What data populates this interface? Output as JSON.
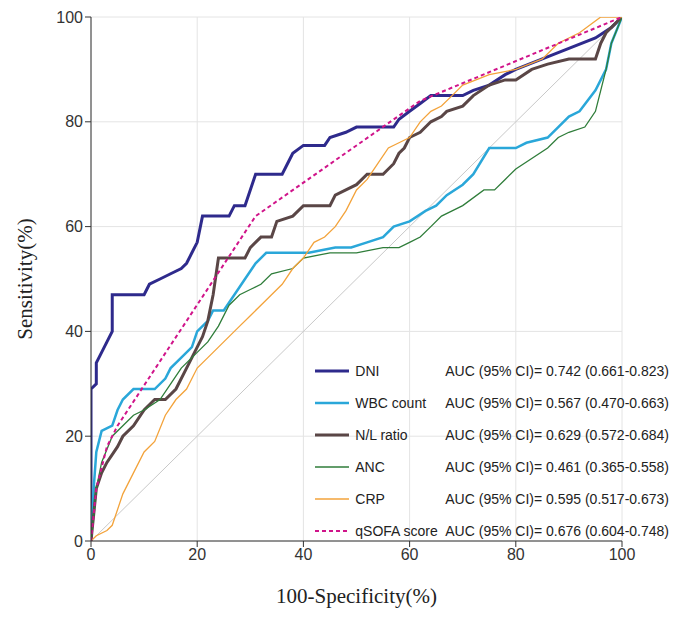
{
  "chart_data": {
    "type": "line",
    "x_label": "100-Specificity(%)",
    "y_label": "Sensitivity(%)",
    "xlim": [
      0,
      100
    ],
    "ylim": [
      0,
      100
    ],
    "xticks": [
      0,
      20,
      40,
      60,
      80,
      100
    ],
    "yticks": [
      0,
      20,
      40,
      60,
      80,
      100
    ],
    "grid": true,
    "legend": "lower right",
    "series": [
      {
        "name": "DNI",
        "annotation": "AUC (95% CI)= 0.742 (0.661-0.823)",
        "color": "#2e2a8c",
        "line_style": "solid",
        "x": [
          0,
          0,
          1,
          1,
          2,
          3,
          4,
          4,
          10,
          11,
          13,
          15,
          17,
          18,
          19,
          20,
          21,
          26,
          27,
          29,
          30,
          31,
          36,
          37,
          38,
          40,
          44,
          45,
          48,
          50,
          57,
          58,
          60,
          62,
          64,
          70,
          72,
          75,
          78,
          80,
          85,
          90,
          95,
          98,
          100
        ],
        "values": [
          0,
          29,
          30,
          34,
          36,
          38,
          40,
          47,
          47,
          49,
          50,
          51,
          52,
          53,
          55,
          57,
          62,
          62,
          64,
          64,
          67,
          70,
          70,
          72,
          74,
          75.5,
          75.5,
          77,
          78,
          79,
          79,
          80.5,
          82,
          83.5,
          85,
          85,
          86,
          87,
          89,
          90,
          92,
          94,
          96,
          98,
          100
        ]
      },
      {
        "name": "WBC count",
        "annotation": "AUC (95% CI)= 0.567 (0.470-0.663)",
        "color": "#2aa7d9",
        "line_style": "solid",
        "x": [
          0,
          0.5,
          1,
          2,
          4,
          5,
          6,
          8,
          12,
          14,
          15,
          17,
          19,
          20,
          22,
          23,
          25,
          27,
          29,
          31,
          33,
          41,
          46,
          49,
          52,
          55,
          57,
          60,
          63,
          65,
          67,
          70,
          72,
          75,
          80,
          82,
          86,
          88,
          90,
          92,
          95,
          97,
          98,
          100
        ],
        "values": [
          0,
          10,
          17,
          21,
          22,
          25,
          27,
          29,
          29,
          31,
          33,
          35,
          37,
          40,
          42,
          44,
          44,
          47,
          50,
          53,
          55,
          55,
          56,
          56,
          57,
          58,
          60,
          61,
          63,
          64,
          66,
          68,
          70,
          75,
          75,
          76,
          77,
          79,
          81,
          82,
          86,
          90,
          95,
          100
        ]
      },
      {
        "name": "N/L ratio",
        "annotation": "AUC (95% CI)= 0.629 (0.572-0.684)",
        "color": "#5a4646",
        "line_style": "solid",
        "x": [
          0,
          1,
          2,
          3,
          5,
          6,
          8,
          10,
          12,
          14,
          16,
          18,
          19,
          20,
          21,
          22,
          23,
          24,
          29,
          30,
          32,
          34,
          35,
          38,
          40,
          45,
          46,
          48,
          50,
          52,
          55,
          57,
          58,
          59,
          60,
          62,
          64,
          66,
          67,
          70,
          72,
          75,
          78,
          80,
          83,
          86,
          90,
          95,
          96,
          97,
          100
        ],
        "values": [
          0,
          10,
          13,
          15,
          18,
          20,
          22,
          25,
          27,
          27,
          29,
          33,
          35,
          37,
          39,
          42,
          47,
          54,
          54,
          56,
          58,
          58,
          61,
          62,
          64,
          64,
          66,
          67,
          68,
          70,
          70,
          72,
          74,
          75,
          77,
          78,
          80,
          81,
          82,
          83,
          85,
          87,
          88,
          88,
          90,
          91,
          92,
          92,
          95,
          97,
          100
        ]
      },
      {
        "name": "ANC",
        "annotation": "AUC (95% CI)= 0.461 (0.365-0.558)",
        "color": "#2f7d3a",
        "line_style": "solid",
        "x": [
          0,
          1,
          2,
          4,
          6,
          8,
          10,
          13,
          15,
          17,
          20,
          22,
          24,
          26,
          28,
          30,
          32,
          34,
          38,
          40,
          45,
          50,
          55,
          58,
          60,
          62,
          64,
          66,
          68,
          70,
          74,
          76,
          78,
          80,
          83,
          86,
          88,
          90,
          93,
          95,
          96,
          97,
          98,
          100
        ],
        "values": [
          0,
          10,
          15,
          20,
          22,
          24,
          25,
          27,
          30,
          33,
          36,
          38,
          41,
          45,
          47,
          48,
          49,
          51,
          52,
          54,
          55,
          55,
          56,
          56,
          57,
          58,
          60,
          62,
          63,
          64,
          67,
          67,
          69,
          71,
          73,
          75,
          77,
          78,
          79,
          82,
          86,
          90,
          95,
          100
        ]
      },
      {
        "name": "CRP",
        "annotation": "AUC (95% CI)= 0.595 (0.517-0.673)",
        "color": "#f3a33b",
        "line_style": "solid",
        "x": [
          0,
          1,
          3,
          4,
          6,
          8,
          10,
          12,
          14,
          16,
          18,
          20,
          22,
          24,
          26,
          28,
          30,
          32,
          34,
          36,
          38,
          40,
          42,
          44,
          46,
          48,
          50,
          52,
          54,
          56,
          58,
          60,
          62,
          64,
          66,
          68,
          70,
          75,
          80,
          85,
          88,
          92,
          96,
          100
        ],
        "values": [
          0,
          1,
          2,
          3,
          9,
          13,
          17,
          19,
          24,
          27,
          29,
          33,
          35,
          37,
          39,
          41,
          43,
          45,
          47,
          49,
          52,
          54,
          57,
          58,
          60,
          63,
          67,
          69,
          72,
          75,
          76,
          77,
          80,
          82,
          83,
          85,
          87,
          89,
          90,
          92,
          95,
          97,
          100,
          100
        ]
      },
      {
        "name": "qSOFA score",
        "annotation": "AUC (95% CI)= 0.676 (0.604-0.748)",
        "color": "#d0148a",
        "line_style": "dashed",
        "x": [
          0,
          1,
          3,
          5,
          31,
          62,
          100
        ],
        "values": [
          0,
          10,
          18,
          22,
          62,
          84,
          100
        ]
      }
    ]
  }
}
